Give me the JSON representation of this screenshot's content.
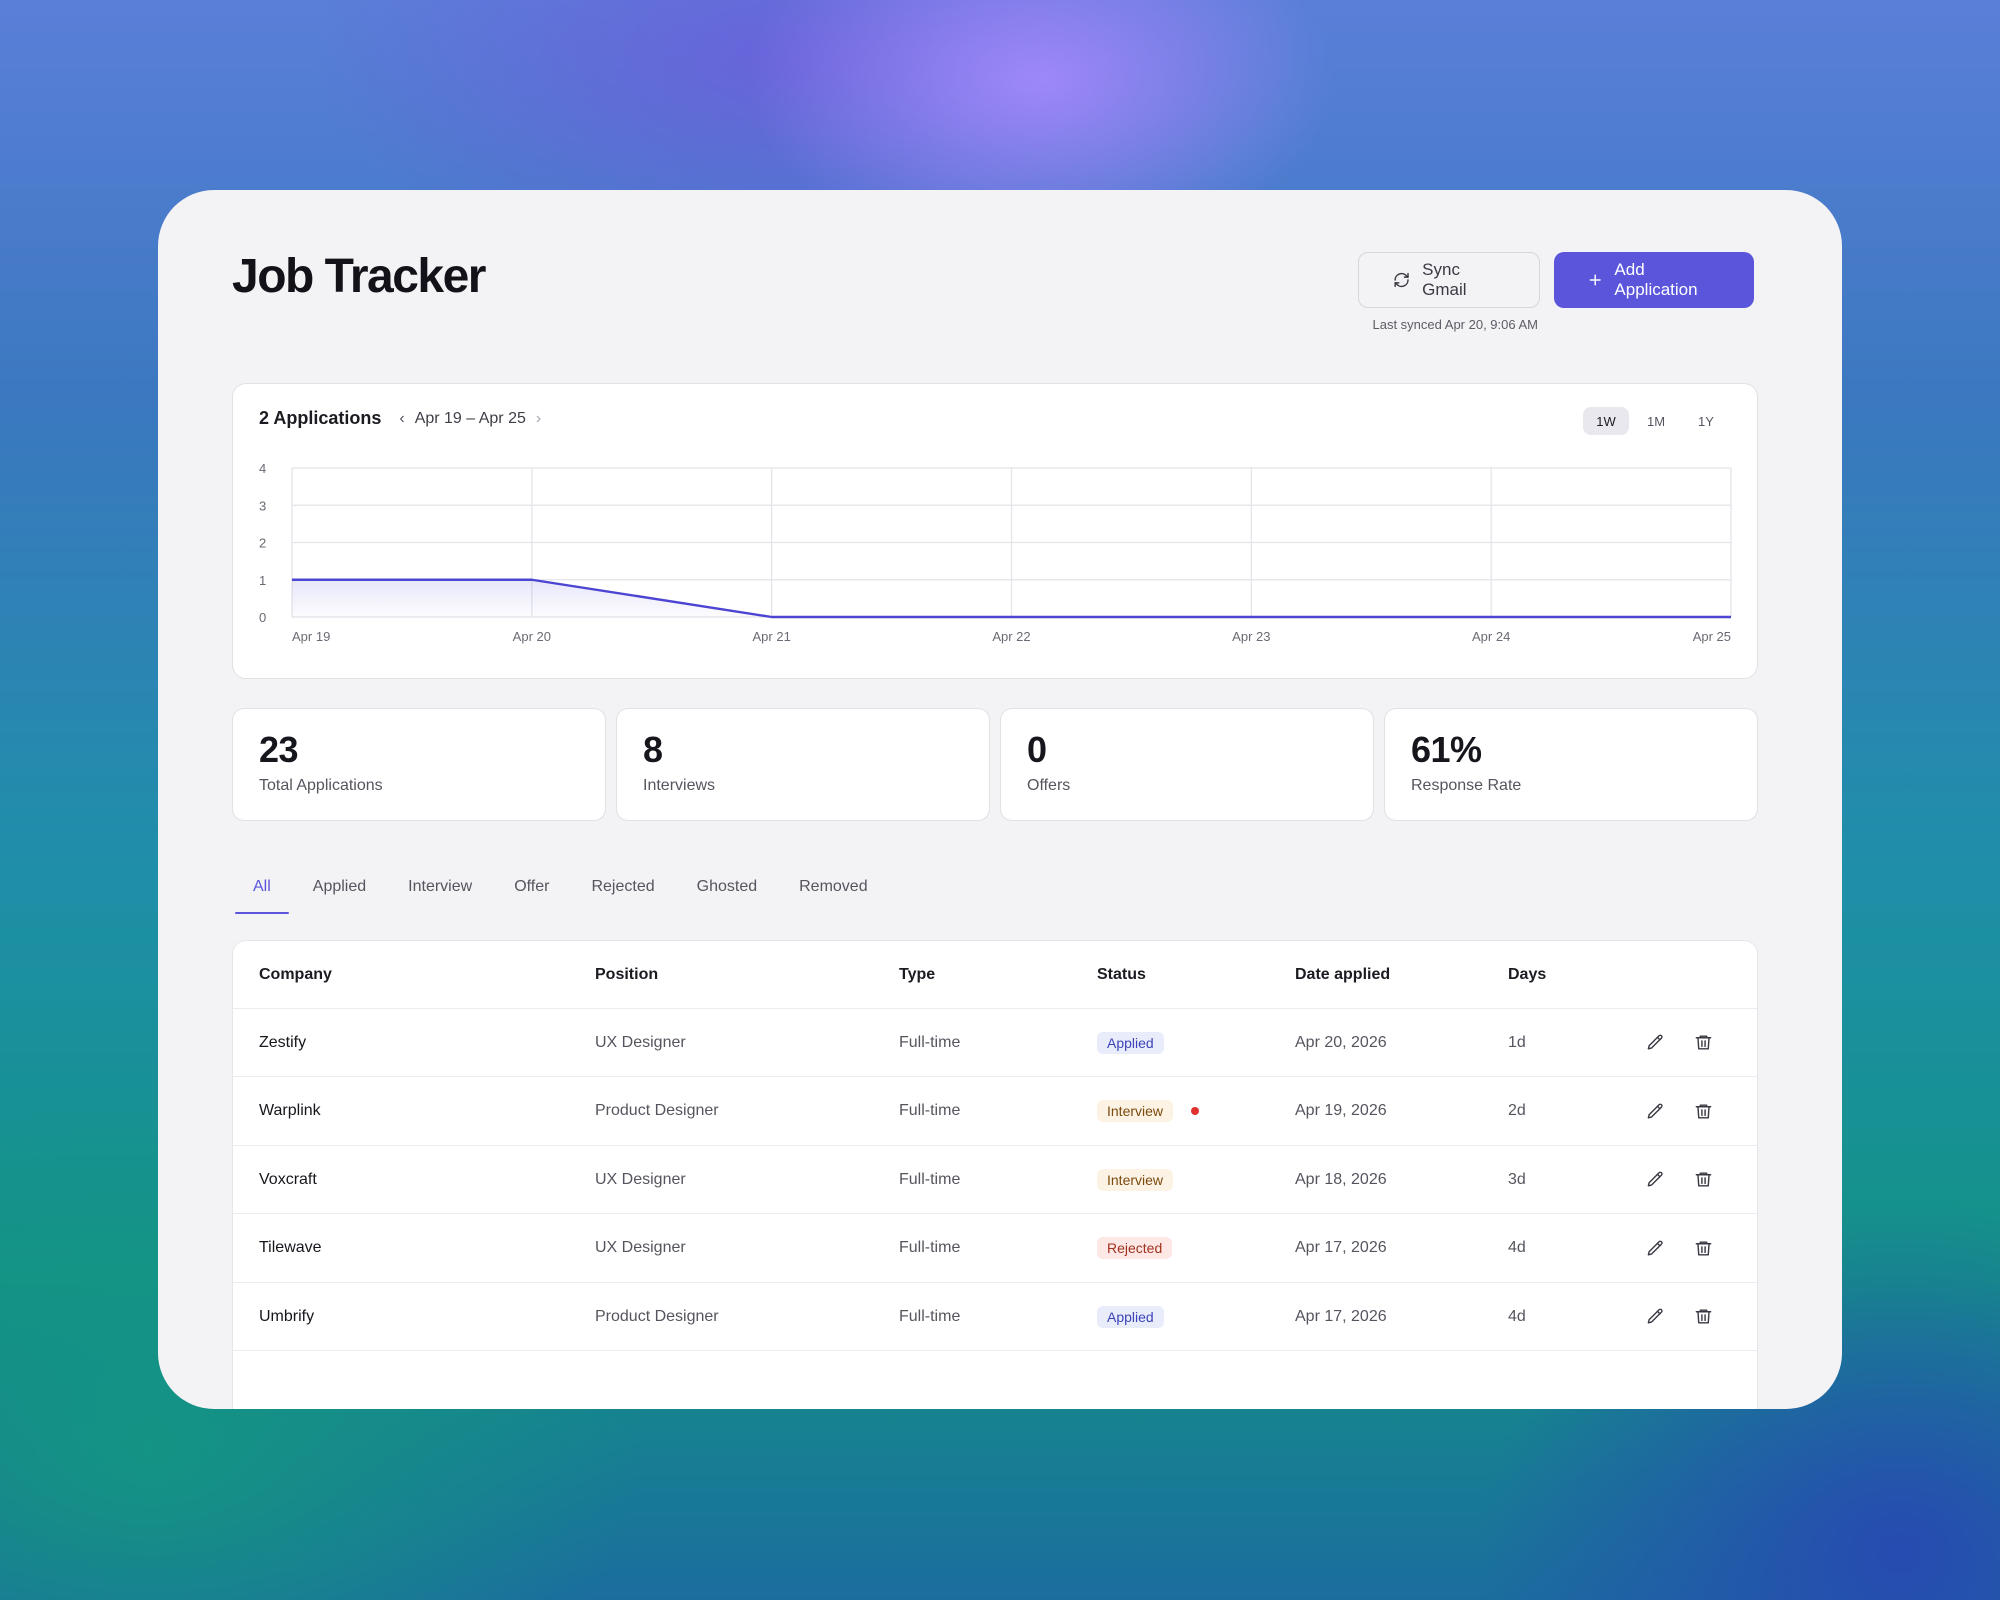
{
  "header": {
    "title": "Job Tracker",
    "sync_label": "Sync Gmail",
    "add_label": "Add Application",
    "last_synced": "Last synced Apr 20, 9:06 AM"
  },
  "chart": {
    "count_label": "2 Applications",
    "range_label": "Apr 19 – Apr 25",
    "periods": [
      "1W",
      "1M",
      "1Y"
    ],
    "active_period": "1W",
    "line_color": "#4b45d1"
  },
  "chart_data": {
    "type": "area",
    "categories": [
      "Apr 19",
      "Apr 20",
      "Apr 21",
      "Apr 22",
      "Apr 23",
      "Apr 24",
      "Apr 25"
    ],
    "values": [
      1,
      1,
      0,
      0,
      0,
      0,
      0
    ],
    "yticks": [
      "0",
      "1",
      "2",
      "3",
      "4"
    ],
    "ylim": [
      0,
      4
    ],
    "grid": true
  },
  "stats": [
    {
      "value": "23",
      "label": "Total Applications"
    },
    {
      "value": "8",
      "label": "Interviews"
    },
    {
      "value": "0",
      "label": "Offers"
    },
    {
      "value": "61%",
      "label": "Response Rate"
    }
  ],
  "tabs": [
    "All",
    "Applied",
    "Interview",
    "Offer",
    "Rejected",
    "Ghosted",
    "Removed"
  ],
  "table": {
    "headers": {
      "company": "Company",
      "position": "Position",
      "type": "Type",
      "status": "Status",
      "date": "Date applied",
      "days": "Days"
    },
    "rows": [
      {
        "company": "Zestify",
        "position": "UX Designer",
        "type": "Full-time",
        "status": "Applied",
        "date": "Apr 20, 2026",
        "days": "1d"
      },
      {
        "company": "Warplink",
        "position": "Product Designer",
        "type": "Full-time",
        "status": "Interview",
        "date": "Apr 19, 2026",
        "days": "2d"
      },
      {
        "company": "Voxcraft",
        "position": "UX Designer",
        "type": "Full-time",
        "status": "Interview",
        "date": "Apr 18, 2026",
        "days": "3d"
      },
      {
        "company": "Tilewave",
        "position": "UX Designer",
        "type": "Full-time",
        "status": "Rejected",
        "date": "Apr 17, 2026",
        "days": "4d"
      },
      {
        "company": "Umbrify",
        "position": "Product Designer",
        "type": "Full-time",
        "status": "Applied",
        "date": "Apr 17, 2026",
        "days": "4d"
      }
    ]
  },
  "icons": {
    "sync": "refresh-icon",
    "add": "plus-icon",
    "edit": "pencil-icon",
    "delete": "trash-icon",
    "prev": "chevron-left-icon",
    "next": "chevron-right-icon",
    "notification": "red-dot"
  }
}
